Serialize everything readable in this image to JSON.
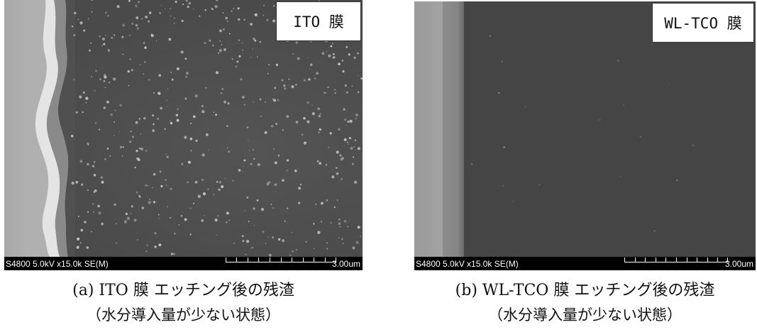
{
  "panels": [
    {
      "film_label": "ITO 膜",
      "databar_text": "S4800 5.0kV x15.0k SE(M)",
      "scale_value": "3.00um",
      "caption_line1": "(a) ITO 膜  エッチング後の残渣",
      "caption_line2": "（水分導入量が少ない状態）"
    },
    {
      "film_label": "WL-TCO 膜",
      "databar_text": "S4800 5.0kV x15.0k SE(M)",
      "scale_value": "3.00um",
      "caption_line1": "(b) WL-TCO 膜  エッチング後の残渣",
      "caption_line2": "（水分導入量が少ない状態）"
    }
  ]
}
